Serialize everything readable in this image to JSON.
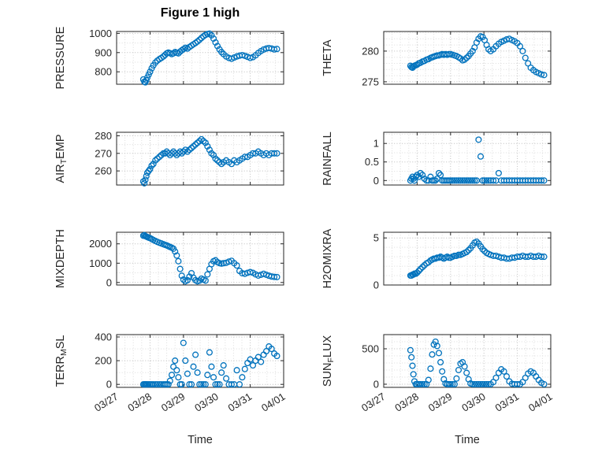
{
  "figure": {
    "title": "Figure 1 high",
    "marker_color": "#0072BD",
    "axis_color": "#262626"
  },
  "chart_data": {
    "type": "scatter",
    "layout": "4 rows x 2 columns of subplots, shared time axis, open circle markers",
    "marker": "open-circle",
    "x_axis": {
      "label": "Time",
      "unit": "days since 03/27",
      "range": [
        0,
        5
      ],
      "tick_values": [
        0,
        1,
        2,
        3,
        4,
        5
      ],
      "tick_labels": [
        "03/27",
        "03/28",
        "03/29",
        "03/30",
        "03/31",
        "04/01"
      ]
    },
    "x": [
      0.8,
      0.83,
      0.86,
      0.89,
      0.92,
      0.96,
      1.0,
      1.05,
      1.1,
      1.16,
      1.22,
      1.28,
      1.34,
      1.4,
      1.45,
      1.5,
      1.55,
      1.6,
      1.65,
      1.7,
      1.75,
      1.8,
      1.85,
      1.9,
      1.95,
      2.0,
      2.06,
      2.12,
      2.18,
      2.24,
      2.3,
      2.36,
      2.42,
      2.48,
      2.54,
      2.6,
      2.66,
      2.72,
      2.78,
      2.84,
      2.9,
      2.96,
      3.02,
      3.08,
      3.14,
      3.2,
      3.28,
      3.36,
      3.44,
      3.52,
      3.6,
      3.68,
      3.76,
      3.84,
      3.92,
      4.0,
      4.08,
      4.16,
      4.24,
      4.32,
      4.4,
      4.48,
      4.56,
      4.64,
      4.72,
      4.8
    ],
    "subplots": [
      {
        "name": "PRESSURE",
        "row": 1,
        "col": 1,
        "ylabel": {
          "pre": "PRESSURE",
          "sub": "",
          "post": ""
        },
        "ylim": [
          735,
          1010
        ],
        "yticks": [
          800,
          900,
          1000
        ],
        "yminor": 50,
        "y": [
          760,
          748,
          745,
          756,
          770,
          785,
          800,
          818,
          833,
          848,
          858,
          866,
          872,
          880,
          888,
          896,
          900,
          897,
          892,
          896,
          903,
          899,
          896,
          905,
          912,
          918,
          925,
          921,
          929,
          936,
          943,
          950,
          958,
          967,
          976,
          985,
          992,
          997,
          999,
          990,
          973,
          953,
          934,
          917,
          903,
          892,
          880,
          872,
          868,
          874,
          880,
          884,
          887,
          883,
          878,
          872,
          876,
          886,
          898,
          908,
          916,
          921,
          924,
          921,
          917,
          919
        ]
      },
      {
        "name": "THETA",
        "row": 1,
        "col": 2,
        "ylabel": {
          "pre": "THETA",
          "sub": "",
          "post": ""
        },
        "ylim": [
          274.6,
          283.2
        ],
        "yticks": [
          275,
          280
        ],
        "yminor": 1,
        "y": [
          277.6,
          277.4,
          277.3,
          277.5,
          277.6,
          277.7,
          277.8,
          278.0,
          278.1,
          278.3,
          278.4,
          278.6,
          278.7,
          278.9,
          279.0,
          279.1,
          279.2,
          279.3,
          279.3,
          279.4,
          279.5,
          279.4,
          279.5,
          279.4,
          279.5,
          279.5,
          279.4,
          279.3,
          279.2,
          279.0,
          278.8,
          278.5,
          278.6,
          278.9,
          279.2,
          279.6,
          280.0,
          280.6,
          281.4,
          282.0,
          282.4,
          282.3,
          281.8,
          281.0,
          280.3,
          280.0,
          280.3,
          280.8,
          281.2,
          281.5,
          281.7,
          281.9,
          282.0,
          281.8,
          281.6,
          281.3,
          280.8,
          280.0,
          278.9,
          278.0,
          277.3,
          276.9,
          276.6,
          276.4,
          276.2,
          276.1
        ]
      },
      {
        "name": "AIR_TEMP",
        "row": 2,
        "col": 1,
        "ylabel": {
          "pre": "AIR",
          "sub": "T",
          "post": "EMP"
        },
        "ylim": [
          252,
          282
        ],
        "yticks": [
          260,
          270,
          280
        ],
        "yminor": 5,
        "y": [
          254,
          253,
          255,
          257,
          259,
          260,
          261,
          263,
          264,
          266,
          267,
          268,
          269,
          270,
          270,
          271,
          270,
          269,
          270,
          271,
          270,
          269,
          270,
          271,
          270,
          271,
          272,
          271,
          272,
          273,
          274,
          275,
          276,
          277,
          278,
          277,
          276,
          274,
          272,
          270,
          269,
          267,
          266,
          265,
          264,
          265,
          266,
          265,
          264,
          266,
          265,
          266,
          267,
          268,
          268,
          269,
          270,
          270,
          271,
          270,
          269,
          270,
          269,
          270,
          270,
          270
        ]
      },
      {
        "name": "RAINFALL",
        "row": 2,
        "col": 2,
        "ylabel": {
          "pre": "RAINFALL",
          "sub": "",
          "post": ""
        },
        "ylim": [
          -0.12,
          1.3
        ],
        "yticks": [
          0,
          0.5,
          1
        ],
        "yminor": 0.25,
        "y": [
          0,
          0.05,
          0.1,
          0.05,
          0,
          0.1,
          0.15,
          0.1,
          0.2,
          0.15,
          0.05,
          0,
          0,
          0.1,
          0,
          0,
          0,
          0.05,
          0.2,
          0.15,
          0,
          0,
          0,
          0,
          0,
          0,
          0,
          0,
          0,
          0,
          0,
          0,
          0,
          0,
          0,
          0,
          0,
          0,
          0,
          1.1,
          0.65,
          0,
          0,
          0,
          0,
          0,
          0,
          0,
          0.2,
          0,
          0,
          0,
          0,
          0,
          0,
          0,
          0,
          0,
          0,
          0,
          0,
          0,
          0,
          0,
          0,
          0
        ]
      },
      {
        "name": "MIXDEPTH",
        "row": 3,
        "col": 1,
        "ylabel": {
          "pre": "MIXDEPTH",
          "sub": "",
          "post": ""
        },
        "ylim": [
          -130,
          2600
        ],
        "yticks": [
          0,
          1000,
          2000
        ],
        "yminor": 500,
        "y": [
          2420,
          2450,
          2400,
          2380,
          2350,
          2320,
          2300,
          2250,
          2200,
          2150,
          2100,
          2060,
          2020,
          1980,
          1950,
          1920,
          1880,
          1840,
          1800,
          1750,
          1600,
          1400,
          1100,
          700,
          350,
          150,
          60,
          120,
          300,
          480,
          250,
          120,
          60,
          100,
          200,
          150,
          100,
          420,
          700,
          950,
          1100,
          1150,
          1050,
          1000,
          980,
          1000,
          1020,
          1080,
          1120,
          1000,
          880,
          600,
          480,
          450,
          500,
          540,
          500,
          420,
          360,
          400,
          450,
          400,
          350,
          310,
          290,
          280
        ]
      },
      {
        "name": "H2OMIXRA",
        "row": 3,
        "col": 2,
        "ylabel": {
          "pre": "H2OMIXRA",
          "sub": "",
          "post": ""
        },
        "ylim": [
          0,
          5.6
        ],
        "yticks": [
          0,
          5
        ],
        "yminor": 1,
        "y": [
          1.0,
          1.0,
          1.1,
          1.1,
          1.2,
          1.2,
          1.3,
          1.5,
          1.7,
          1.9,
          2.1,
          2.3,
          2.4,
          2.6,
          2.7,
          2.8,
          2.8,
          2.9,
          2.9,
          3.0,
          2.9,
          2.8,
          2.9,
          3.0,
          2.9,
          2.9,
          3.0,
          3.1,
          3.1,
          3.2,
          3.2,
          3.3,
          3.4,
          3.5,
          3.7,
          3.9,
          4.2,
          4.5,
          4.6,
          4.4,
          4.1,
          3.8,
          3.6,
          3.4,
          3.3,
          3.2,
          3.1,
          3.1,
          3.0,
          2.9,
          2.9,
          2.8,
          2.8,
          2.9,
          2.9,
          3.0,
          3.0,
          3.1,
          3.0,
          3.0,
          3.1,
          3.0,
          3.0,
          3.1,
          3.0,
          3.0
        ]
      },
      {
        "name": "TERR_MSL",
        "row": 4,
        "col": 1,
        "ylabel": {
          "pre": "TERR",
          "sub": "M",
          "post": "SL"
        },
        "ylim": [
          -25,
          420
        ],
        "yticks": [
          0,
          200,
          400
        ],
        "yminor": 100,
        "y": [
          0,
          0,
          0,
          0,
          0,
          0,
          0,
          0,
          0,
          0,
          0,
          0,
          0,
          0,
          0,
          0,
          0,
          30,
          80,
          150,
          200,
          120,
          60,
          0,
          0,
          350,
          200,
          90,
          0,
          0,
          150,
          250,
          100,
          0,
          0,
          0,
          0,
          80,
          270,
          150,
          60,
          0,
          0,
          0,
          100,
          160,
          50,
          0,
          0,
          0,
          120,
          0,
          60,
          130,
          180,
          210,
          160,
          200,
          230,
          190,
          250,
          280,
          320,
          300,
          260,
          240
        ]
      },
      {
        "name": "SUN_FLUX",
        "row": 4,
        "col": 2,
        "ylabel": {
          "pre": "SUN",
          "sub": "F",
          "post": "LUX"
        },
        "ylim": [
          -45,
          700
        ],
        "yticks": [
          0,
          500
        ],
        "yminor": 100,
        "y": [
          480,
          380,
          260,
          140,
          40,
          0,
          0,
          0,
          0,
          0,
          0,
          0,
          60,
          220,
          420,
          560,
          600,
          540,
          440,
          310,
          180,
          70,
          10,
          0,
          0,
          0,
          0,
          0,
          80,
          200,
          290,
          310,
          250,
          160,
          70,
          10,
          0,
          0,
          0,
          0,
          0,
          0,
          0,
          0,
          0,
          0,
          30,
          90,
          160,
          210,
          180,
          110,
          40,
          5,
          0,
          0,
          0,
          30,
          90,
          150,
          180,
          160,
          110,
          60,
          20,
          0
        ]
      }
    ]
  }
}
